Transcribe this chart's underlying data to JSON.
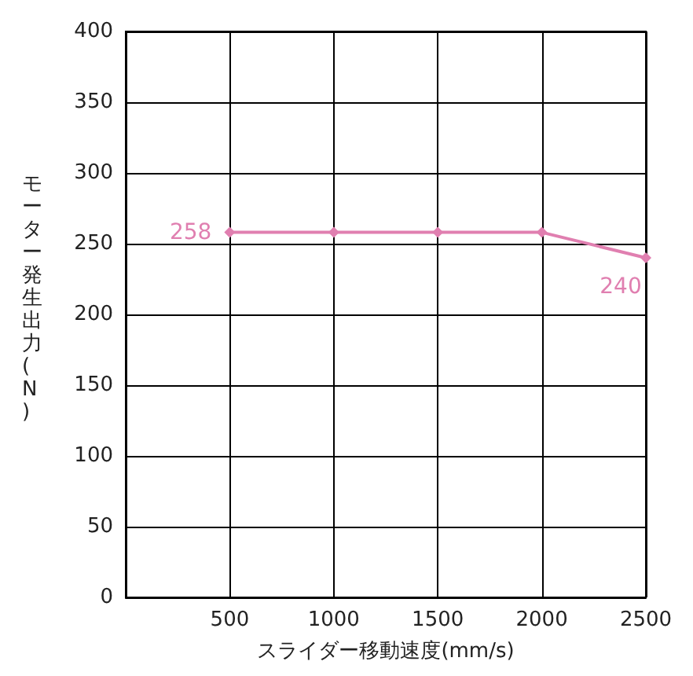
{
  "chart_data": {
    "type": "line",
    "xlabel": "スライダー移動速度(mm/s)",
    "ylabel": "モーター発生出力(N)",
    "x": [
      500,
      1000,
      1500,
      2000,
      2500
    ],
    "series": [
      {
        "color": "#e07fb0",
        "values": [
          258,
          258,
          258,
          258,
          240
        ],
        "value_labels": [
          "258",
          null,
          null,
          null,
          "240"
        ]
      }
    ],
    "xlim": [
      0,
      2500
    ],
    "xticks": [
      500,
      1000,
      1500,
      2000,
      2500
    ],
    "ylim": [
      0,
      400
    ],
    "yticks": [
      0,
      50,
      100,
      150,
      200,
      250,
      300,
      350,
      400
    ],
    "grid": true,
    "marker": "diamond",
    "line_style": "solid"
  }
}
